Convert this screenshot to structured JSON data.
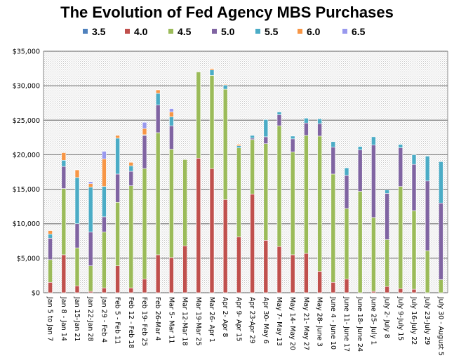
{
  "chart_data": {
    "type": "bar",
    "stacked": true,
    "title": "The Evolution of Fed Agency MBS Purchases",
    "xlabel": "",
    "ylabel": "",
    "ylim": [
      0,
      35000
    ],
    "yticks": [
      0,
      5000,
      10000,
      15000,
      20000,
      25000,
      30000,
      35000
    ],
    "ytick_labels": [
      "$0",
      "$5,000",
      "$10,000",
      "$15,000",
      "$20,000",
      "$25,000",
      "$30,000",
      "$35,000"
    ],
    "grid": true,
    "legend_position": "top",
    "categories": [
      "Jan 5 to Jan 7",
      "Jan 8 - Jan 14",
      "Jan 15-Jan 21",
      "Jan 22-Jan 28",
      "Jan 29 - Feb 4",
      "Feb 5 - Feb 11",
      "Feb 12 - Feb 18",
      "Feb 19- Feb 25",
      "Feb 26-Mar 4",
      "Mar 5- Mar 11",
      "Mar 12-Mar 18",
      "Mar 19-Mar  25",
      "Mar 26- Apr 1",
      "Apr 2- Apr 8",
      "Apr 9- Apr 15",
      "Apr 23-Apr 29",
      "Apr 30- May 6",
      "May 7- May 13",
      "May 14- May 20",
      "May 21- May 27",
      "May 28- June 3",
      "June 4 - June 10",
      "June 11- June 17",
      "June 18- June 24",
      "June 25- July 1",
      "July 2- July 8",
      "July 9-July 15",
      "July 16-July 22",
      "July 23-July 29",
      "July 30 - August 5"
    ],
    "series": [
      {
        "name": "3.5",
        "color": "#4f81bd",
        "values": [
          0,
          0,
          0,
          0,
          0,
          0,
          0,
          0,
          0,
          0,
          0,
          0,
          0,
          0,
          0,
          0,
          0,
          0,
          0,
          0,
          0,
          0,
          0,
          0,
          0,
          0,
          0,
          0,
          0,
          0
        ]
      },
      {
        "name": "4.0",
        "color": "#c0504d",
        "values": [
          1500,
          5500,
          1000,
          200,
          700,
          3900,
          700,
          2000,
          5500,
          5100,
          6800,
          19500,
          18000,
          13500,
          8100,
          14300,
          7600,
          6700,
          5500,
          5700,
          3100,
          1500,
          2000,
          0,
          200,
          900,
          600,
          500,
          0,
          0
        ]
      },
      {
        "name": "4.5",
        "color": "#9bbb59",
        "values": [
          3300,
          9600,
          5500,
          3700,
          8100,
          9200,
          14800,
          16000,
          17700,
          15700,
          12500,
          12500,
          13500,
          16000,
          12900,
          7900,
          14000,
          17500,
          14900,
          17100,
          19600,
          15700,
          10200,
          14700,
          10700,
          6800,
          14800,
          11400,
          6100,
          1900
        ]
      },
      {
        "name": "5.0",
        "color": "#8064a2",
        "values": [
          3100,
          3200,
          3500,
          4900,
          2200,
          4100,
          2100,
          4800,
          4000,
          3400,
          0,
          0,
          0,
          0,
          0,
          200,
          1000,
          1600,
          1900,
          1800,
          1800,
          3900,
          4800,
          6000,
          10500,
          6700,
          5600,
          6700,
          10100,
          11100
        ]
      },
      {
        "name": "5.5",
        "color": "#4bacc6",
        "values": [
          600,
          900,
          6700,
          6500,
          4400,
          5200,
          800,
          100,
          1700,
          1300,
          0,
          0,
          800,
          600,
          300,
          400,
          2500,
          400,
          400,
          700,
          700,
          800,
          1100,
          500,
          1200,
          500,
          500,
          1400,
          3600,
          6000
        ]
      },
      {
        "name": "6.0",
        "color": "#f79646",
        "values": [
          500,
          1100,
          1100,
          500,
          4000,
          400,
          500,
          900,
          500,
          700,
          0,
          0,
          200,
          100,
          200,
          0,
          0,
          0,
          0,
          0,
          0,
          0,
          0,
          0,
          0,
          0,
          0,
          0,
          0,
          0
        ]
      },
      {
        "name": "6.5",
        "color": "#9999ee",
        "values": [
          0,
          0,
          0,
          300,
          1100,
          0,
          0,
          900,
          0,
          500,
          0,
          0,
          0,
          0,
          0,
          0,
          0,
          0,
          0,
          0,
          0,
          0,
          0,
          0,
          0,
          0,
          0,
          0,
          0,
          0
        ]
      }
    ]
  }
}
